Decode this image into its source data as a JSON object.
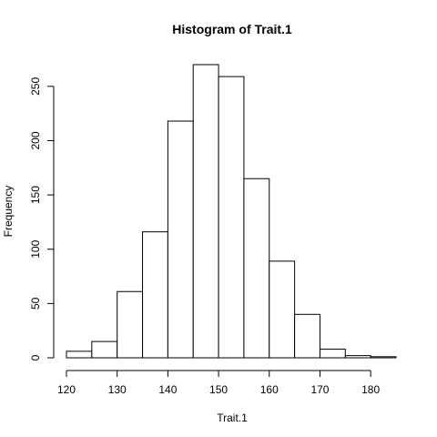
{
  "chart_data": {
    "type": "bar",
    "title": "Histogram of Trait.1",
    "xlabel": "Trait.1",
    "ylabel": "Frequency",
    "bins": [
      {
        "from": 120,
        "to": 125,
        "count": 6
      },
      {
        "from": 125,
        "to": 130,
        "count": 15
      },
      {
        "from": 130,
        "to": 135,
        "count": 61
      },
      {
        "from": 135,
        "to": 140,
        "count": 116
      },
      {
        "from": 140,
        "to": 145,
        "count": 218
      },
      {
        "from": 145,
        "to": 150,
        "count": 270
      },
      {
        "from": 150,
        "to": 155,
        "count": 259
      },
      {
        "from": 155,
        "to": 160,
        "count": 165
      },
      {
        "from": 160,
        "to": 165,
        "count": 89
      },
      {
        "from": 165,
        "to": 170,
        "count": 40
      },
      {
        "from": 170,
        "to": 175,
        "count": 8
      },
      {
        "from": 175,
        "to": 180,
        "count": 2
      },
      {
        "from": 180,
        "to": 185,
        "count": 1
      }
    ],
    "xlim": [
      120,
      185
    ],
    "ylim": [
      0,
      270
    ],
    "xticks": [
      120,
      130,
      140,
      150,
      160,
      170,
      180
    ],
    "yticks": [
      0,
      50,
      100,
      150,
      200,
      250
    ],
    "grid": false,
    "legend": "none",
    "bar_fill": "#ffffff",
    "bar_stroke": "#000000"
  }
}
